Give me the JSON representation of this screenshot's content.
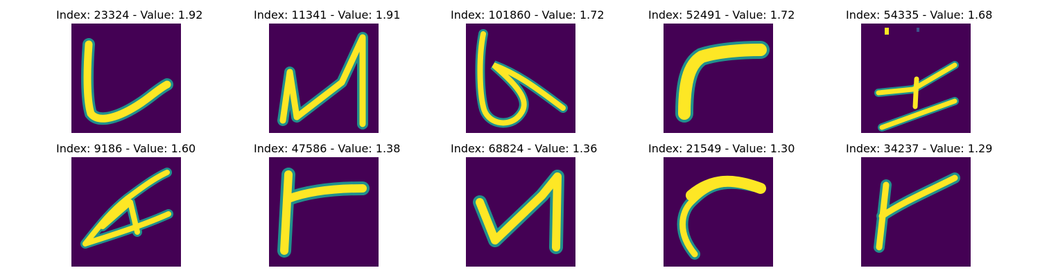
{
  "figure": {
    "background": "#ffffff",
    "colormap": "viridis",
    "image_background": "#440154",
    "stroke_color": "#fde725",
    "edge_color": "#21908d"
  },
  "panels": [
    {
      "title": "Index: 23324 - Value: 1.92",
      "glyph": "L-shape with curl"
    },
    {
      "title": "Index: 11341 - Value: 1.91",
      "glyph": "zigzag N-shape"
    },
    {
      "title": "Index: 101860 - Value: 1.72",
      "glyph": "looped b-shape"
    },
    {
      "title": "Index: 52491 - Value: 1.72",
      "glyph": "angled r-shape"
    },
    {
      "title": "Index: 54335 - Value: 1.68",
      "glyph": "double stroke with bar"
    },
    {
      "title": "Index: 9186 - Value: 1.60",
      "glyph": "open triangle A-shape"
    },
    {
      "title": "Index: 47586 - Value: 1.38",
      "glyph": "r-shape with tall stem"
    },
    {
      "title": "Index: 68824 - Value: 1.36",
      "glyph": "V-shape with tall right stroke"
    },
    {
      "title": "Index: 21549 - Value: 1.30",
      "glyph": "curved hook stroke"
    },
    {
      "title": "Index: 34237 - Value: 1.29",
      "glyph": "Y-shape with stem"
    }
  ]
}
